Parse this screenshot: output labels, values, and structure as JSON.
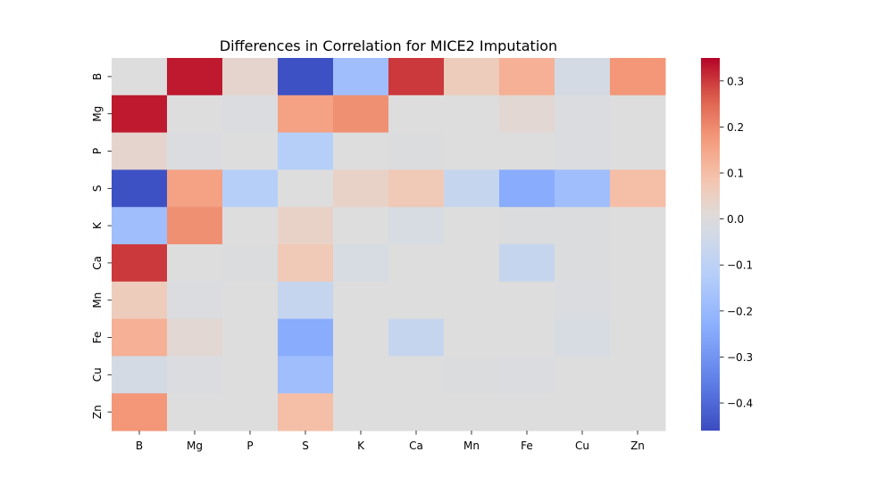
{
  "chart_data": {
    "type": "heatmap",
    "title": "Differences in Correlation for MICE2 Imputation",
    "xlabel": "",
    "ylabel": "",
    "x_categories": [
      "B",
      "Mg",
      "P",
      "S",
      "K",
      "Ca",
      "Mn",
      "Fe",
      "Cu",
      "Zn"
    ],
    "y_categories": [
      "B",
      "Mg",
      "P",
      "S",
      "K",
      "Ca",
      "Mn",
      "Fe",
      "Cu",
      "Zn"
    ],
    "values": [
      [
        0.0,
        0.33,
        0.03,
        -0.45,
        -0.18,
        0.3,
        0.06,
        0.13,
        -0.03,
        0.18
      ],
      [
        0.33,
        0.0,
        -0.01,
        0.16,
        0.19,
        0.0,
        0.0,
        0.02,
        -0.01,
        0.0
      ],
      [
        0.03,
        -0.01,
        0.0,
        -0.12,
        0.0,
        -0.005,
        0.0,
        0.0,
        -0.01,
        0.0
      ],
      [
        -0.45,
        0.16,
        -0.12,
        0.0,
        0.04,
        0.07,
        -0.07,
        -0.24,
        -0.18,
        0.1
      ],
      [
        -0.18,
        0.19,
        0.0,
        0.04,
        0.0,
        -0.02,
        0.0,
        -0.005,
        -0.005,
        0.0
      ],
      [
        0.3,
        0.0,
        -0.005,
        0.07,
        -0.02,
        0.0,
        0.0,
        -0.07,
        -0.005,
        0.0
      ],
      [
        0.06,
        -0.01,
        0.0,
        -0.07,
        0.0,
        0.0,
        0.0,
        0.0,
        -0.01,
        0.0
      ],
      [
        0.13,
        0.02,
        0.0,
        -0.24,
        0.0,
        -0.07,
        0.0,
        0.0,
        -0.02,
        0.0
      ],
      [
        -0.03,
        -0.01,
        0.0,
        -0.18,
        0.0,
        0.0,
        -0.005,
        -0.01,
        0.0,
        0.0
      ],
      [
        0.18,
        0.0,
        0.0,
        0.1,
        0.0,
        0.0,
        0.0,
        0.0,
        0.0,
        0.0
      ]
    ],
    "colormap": "coolwarm",
    "vmin": -0.46,
    "vmax": 0.35,
    "colorbar_ticks": [
      0.3,
      0.2,
      0.1,
      0.0,
      -0.1,
      -0.2,
      -0.3,
      -0.4
    ],
    "colorbar_tick_labels": [
      "0.3",
      "0.2",
      "0.1",
      "0.0",
      "−0.1",
      "−0.2",
      "−0.3",
      "−0.4"
    ]
  }
}
